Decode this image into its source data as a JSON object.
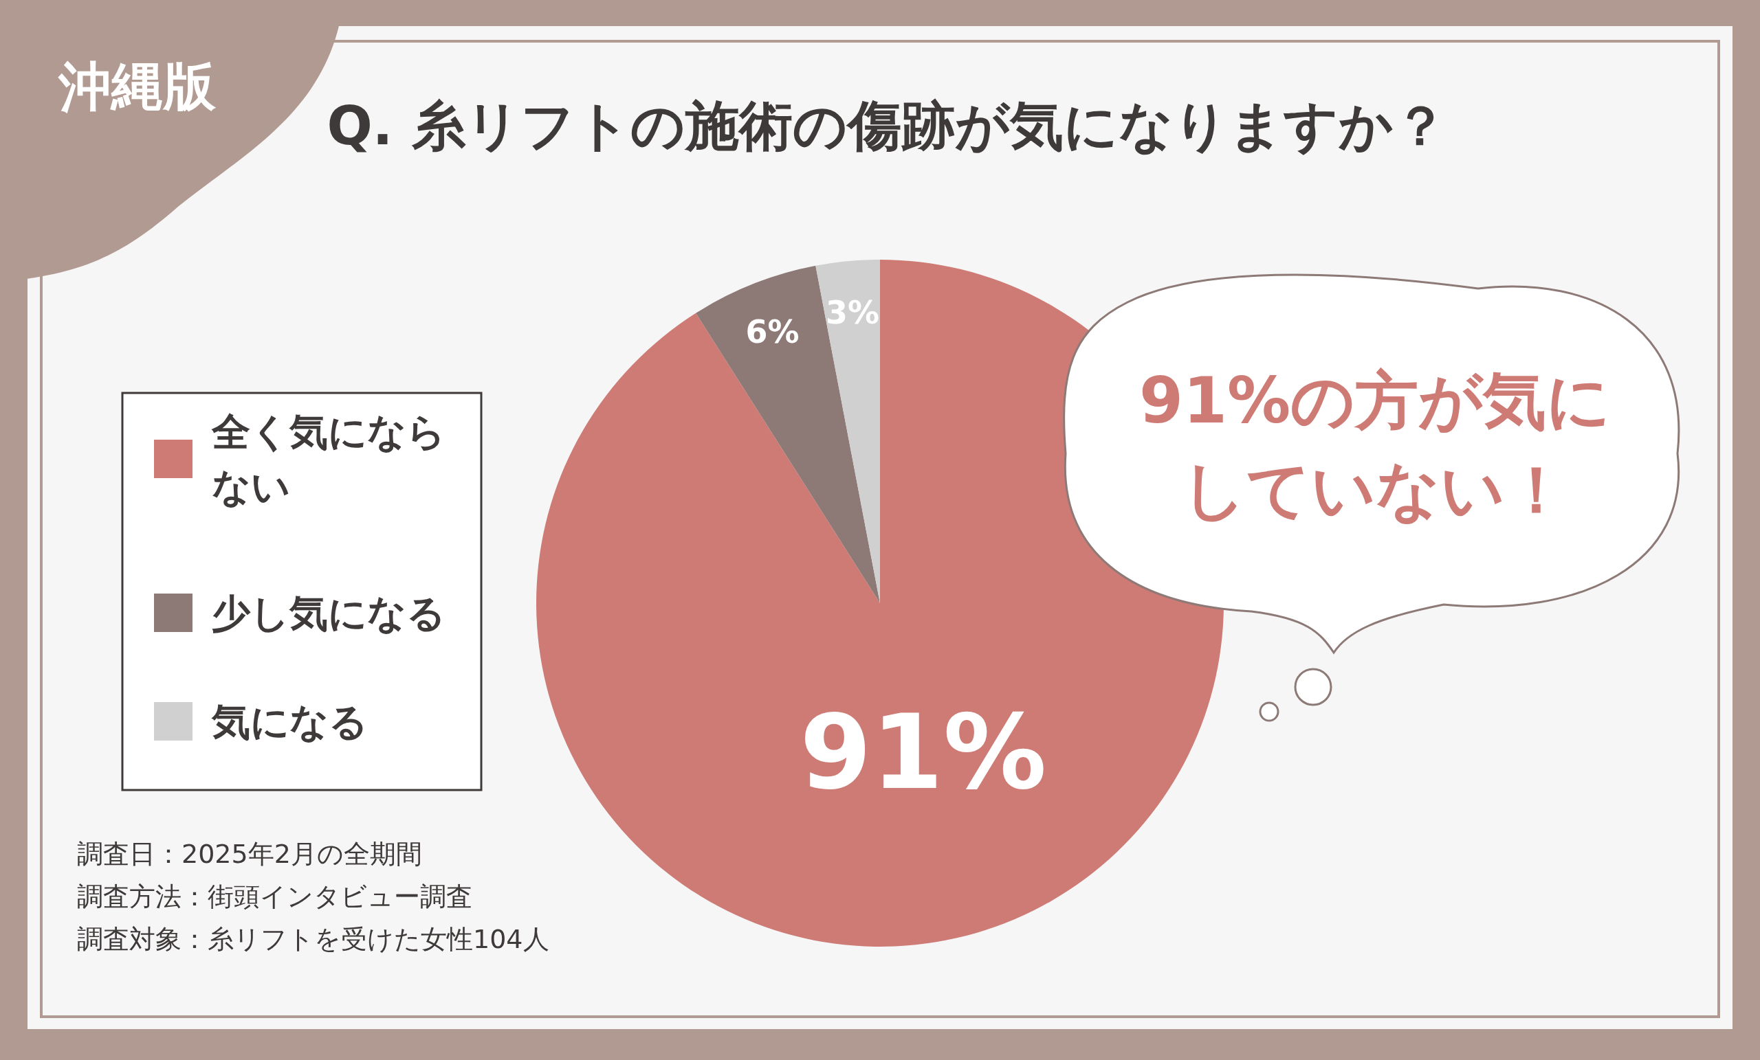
{
  "chart_data": {
    "type": "pie",
    "title": "Q. 糸リフトの施術の傷跡が気になりますか？",
    "subtitle": "沖縄版",
    "categories": [
      "全く気にならない",
      "少し気になる",
      "気になる"
    ],
    "values": [
      91,
      6,
      3
    ],
    "colors": [
      "#cf7b75",
      "#8d7a77",
      "#d0d0d0"
    ],
    "value_labels": [
      "91%",
      "6%",
      "3%"
    ],
    "legend": "left",
    "annotations": [
      "91%の方が気にしていない！",
      "調査日：2025年2月の全期間",
      "調査方法：街頭インタビュー調査",
      "調査対象：糸リフトを受けた女性104人"
    ]
  }
}
